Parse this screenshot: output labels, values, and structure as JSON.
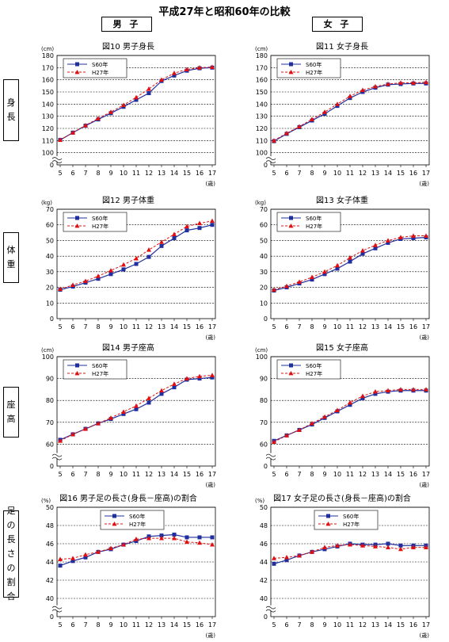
{
  "title": "平成27年と昭和60年の比較",
  "col_headers": {
    "male": "男 子",
    "female": "女 子"
  },
  "row_labels": [
    "身長",
    "体重",
    "座高",
    "足の長さの割合"
  ],
  "tick_suffix": "(歳)",
  "colors": {
    "s60": "#1f2f9e",
    "h27": "#e01010"
  },
  "chart_data": [
    {
      "id": "fig10",
      "type": "line",
      "title": "図10 男子身長",
      "ylabel": "(cm)",
      "ylim": [
        0,
        180
      ],
      "yticks": [
        0,
        100,
        110,
        120,
        130,
        140,
        150,
        160,
        170,
        180
      ],
      "broken_axis": true,
      "grid": true,
      "legend": "top-left",
      "x": [
        5,
        6,
        7,
        8,
        9,
        10,
        11,
        12,
        13,
        14,
        15,
        16,
        17
      ],
      "series": [
        {
          "name": "S60年",
          "marker": "square",
          "values": [
            110.5,
            116.5,
            122.2,
            127.4,
            132.5,
            137.8,
            143.5,
            149.0,
            159.0,
            163.5,
            167.5,
            169.5,
            170.0
          ]
        },
        {
          "name": "H27年",
          "marker": "triangle",
          "values": [
            110.5,
            116.5,
            122.5,
            128.2,
            133.5,
            139.2,
            145.5,
            152.5,
            160.0,
            165.5,
            168.5,
            170.0,
            170.5
          ]
        }
      ]
    },
    {
      "id": "fig11",
      "type": "line",
      "title": "図11 女子身長",
      "ylabel": "(cm)",
      "ylim": [
        0,
        180
      ],
      "yticks": [
        0,
        100,
        110,
        120,
        130,
        140,
        150,
        160,
        170,
        180
      ],
      "broken_axis": true,
      "grid": true,
      "legend": "top-left",
      "x": [
        5,
        6,
        7,
        8,
        9,
        10,
        11,
        12,
        13,
        14,
        15,
        16,
        17
      ],
      "series": [
        {
          "name": "S60年",
          "marker": "square",
          "values": [
            109.5,
            115.5,
            121.0,
            126.5,
            132.0,
            138.5,
            145.0,
            150.0,
            153.5,
            156.0,
            156.5,
            157.0,
            157.0
          ]
        },
        {
          "name": "H27年",
          "marker": "triangle",
          "values": [
            110.0,
            116.0,
            121.5,
            127.5,
            133.5,
            140.0,
            146.5,
            151.5,
            154.5,
            156.5,
            157.5,
            157.5,
            158.0
          ]
        }
      ]
    },
    {
      "id": "fig12",
      "type": "line",
      "title": "図12 男子体重",
      "ylabel": "(kg)",
      "ylim": [
        0,
        70
      ],
      "yticks": [
        0,
        10,
        20,
        30,
        40,
        50,
        60,
        70
      ],
      "broken_axis": false,
      "grid": true,
      "legend": "top-left",
      "x": [
        5,
        6,
        7,
        8,
        9,
        10,
        11,
        12,
        13,
        14,
        15,
        16,
        17
      ],
      "series": [
        {
          "name": "S60年",
          "marker": "square",
          "values": [
            18.5,
            20.5,
            23.0,
            25.5,
            28.5,
            31.5,
            35.0,
            39.5,
            46.5,
            51.5,
            56.5,
            58.0,
            60.0
          ]
        },
        {
          "name": "H27年",
          "marker": "triangle",
          "values": [
            18.9,
            21.5,
            24.0,
            27.2,
            30.8,
            34.5,
            38.5,
            44.0,
            49.0,
            54.0,
            59.0,
            61.0,
            62.5
          ]
        }
      ]
    },
    {
      "id": "fig13",
      "type": "line",
      "title": "図13 女子体重",
      "ylabel": "(kg)",
      "ylim": [
        0,
        70
      ],
      "yticks": [
        0,
        10,
        20,
        30,
        40,
        50,
        60,
        70
      ],
      "broken_axis": false,
      "grid": true,
      "legend": "top-left",
      "x": [
        5,
        6,
        7,
        8,
        9,
        10,
        11,
        12,
        13,
        14,
        15,
        16,
        17
      ],
      "series": [
        {
          "name": "S60年",
          "marker": "square",
          "values": [
            18.0,
            20.0,
            22.5,
            25.0,
            28.5,
            32.0,
            36.5,
            41.5,
            45.0,
            48.5,
            51.0,
            51.5,
            52.0
          ]
        },
        {
          "name": "H27年",
          "marker": "triangle",
          "values": [
            18.5,
            20.8,
            23.5,
            26.5,
            30.0,
            34.0,
            39.0,
            43.5,
            47.0,
            50.0,
            52.0,
            53.0,
            53.0
          ]
        }
      ]
    },
    {
      "id": "fig14",
      "type": "line",
      "title": "図14 男子座高",
      "ylabel": "(cm)",
      "ylim": [
        0,
        100
      ],
      "yticks": [
        0,
        60,
        70,
        80,
        90,
        100
      ],
      "broken_axis": true,
      "grid": true,
      "legend": "top-left",
      "x": [
        5,
        6,
        7,
        8,
        9,
        10,
        11,
        12,
        13,
        14,
        15,
        16,
        17
      ],
      "series": [
        {
          "name": "S60年",
          "marker": "square",
          "values": [
            62.0,
            64.5,
            67.0,
            69.5,
            71.5,
            73.8,
            76.0,
            79.0,
            83.0,
            86.0,
            89.5,
            90.0,
            90.5
          ]
        },
        {
          "name": "H27年",
          "marker": "triangle",
          "values": [
            61.5,
            64.5,
            67.0,
            69.5,
            72.0,
            74.8,
            77.5,
            81.0,
            84.5,
            87.5,
            90.0,
            91.0,
            91.5
          ]
        }
      ]
    },
    {
      "id": "fig15",
      "type": "line",
      "title": "図15 女子座高",
      "ylabel": "(cm)",
      "ylim": [
        0,
        100
      ],
      "yticks": [
        0,
        60,
        70,
        80,
        90,
        100
      ],
      "broken_axis": true,
      "grid": true,
      "legend": "top-left",
      "x": [
        5,
        6,
        7,
        8,
        9,
        10,
        11,
        12,
        13,
        14,
        15,
        16,
        17
      ],
      "series": [
        {
          "name": "S60年",
          "marker": "square",
          "values": [
            61.5,
            64.0,
            66.5,
            69.0,
            72.0,
            75.0,
            78.0,
            81.0,
            83.0,
            84.0,
            84.5,
            84.5,
            84.5
          ]
        },
        {
          "name": "H27年",
          "marker": "triangle",
          "values": [
            61.0,
            64.0,
            66.5,
            69.5,
            72.5,
            75.5,
            79.0,
            82.0,
            84.0,
            84.5,
            85.0,
            85.0,
            85.0
          ]
        }
      ]
    },
    {
      "id": "fig16",
      "type": "line",
      "title": "図16 男子足の長さ(身長－座高)の割合",
      "ylabel": "(%)",
      "ylim": [
        0,
        50
      ],
      "yticks": [
        0,
        40,
        42,
        44,
        46,
        48,
        50
      ],
      "broken_axis": true,
      "grid": true,
      "legend": "top-center",
      "x": [
        5,
        6,
        7,
        8,
        9,
        10,
        11,
        12,
        13,
        14,
        15,
        16,
        17
      ],
      "series": [
        {
          "name": "S60年",
          "marker": "square",
          "values": [
            43.6,
            44.1,
            44.5,
            45.1,
            45.4,
            45.9,
            46.3,
            46.8,
            46.9,
            47.0,
            46.7,
            46.7,
            46.7
          ]
        },
        {
          "name": "H27年",
          "marker": "triangle",
          "values": [
            44.3,
            44.4,
            44.8,
            45.1,
            45.5,
            45.9,
            46.5,
            46.6,
            46.6,
            46.6,
            46.2,
            46.1,
            45.9
          ]
        }
      ]
    },
    {
      "id": "fig17",
      "type": "line",
      "title": "図17 女子足の長さ(身長－座高)の割合",
      "ylabel": "(%)",
      "ylim": [
        0,
        50
      ],
      "yticks": [
        0,
        40,
        42,
        44,
        46,
        48,
        50
      ],
      "broken_axis": true,
      "grid": true,
      "legend": "top-center",
      "x": [
        5,
        6,
        7,
        8,
        9,
        10,
        11,
        12,
        13,
        14,
        15,
        16,
        17
      ],
      "series": [
        {
          "name": "S60年",
          "marker": "square",
          "values": [
            43.8,
            44.2,
            44.7,
            45.1,
            45.4,
            45.7,
            46.0,
            45.9,
            45.9,
            46.0,
            45.8,
            45.8,
            45.8
          ]
        },
        {
          "name": "H27年",
          "marker": "triangle",
          "values": [
            44.4,
            44.5,
            44.7,
            45.1,
            45.6,
            45.8,
            45.9,
            45.8,
            45.7,
            45.6,
            45.4,
            45.6,
            45.6
          ]
        }
      ]
    }
  ]
}
